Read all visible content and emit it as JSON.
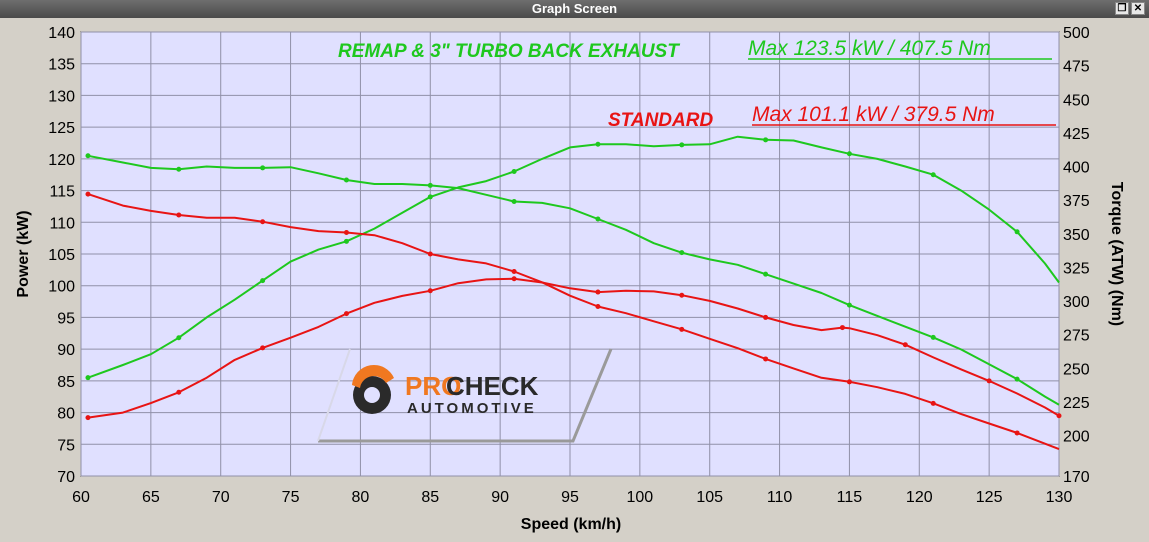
{
  "window": {
    "title": "Graph Screen",
    "restore_icon": "restore-icon",
    "close_icon": "close-icon"
  },
  "colors": {
    "remap": "#1ec81e",
    "standard": "#e81414",
    "plot_bg": "#e0e0ff",
    "grid": "#9090a8"
  },
  "chart_data": {
    "type": "line",
    "xlabel": "Speed (km/h)",
    "ylabel_left": "Power (kW)",
    "ylabel_right": "Torque (ATW) (Nm)",
    "xlim": [
      60,
      130
    ],
    "ylim_left": [
      70,
      140
    ],
    "ylim_right": [
      170,
      500
    ],
    "x_ticks": [
      60,
      65,
      70,
      75,
      80,
      85,
      90,
      95,
      100,
      105,
      110,
      115,
      120,
      125,
      130
    ],
    "y_ticks_left": [
      70,
      75,
      80,
      85,
      90,
      95,
      100,
      105,
      110,
      115,
      120,
      125,
      130,
      135,
      140
    ],
    "y_ticks_right": [
      170,
      200,
      225,
      250,
      275,
      300,
      325,
      350,
      375,
      400,
      425,
      450,
      475,
      500
    ],
    "grid": true,
    "annotations": [
      {
        "text": "REMAP & 3\" TURBO BACK EXHAUST",
        "color": "#1ec81e",
        "style": "bold-italic"
      },
      {
        "text": "Max 123.5 kW  / 407.5 Nm",
        "color": "#1ec81e",
        "style": "italic-underline"
      },
      {
        "text": "STANDARD",
        "color": "#e81414",
        "style": "bold-italic"
      },
      {
        "text": "Max 101.1 kW  / 379.5 Nm",
        "color": "#e81414",
        "style": "italic-underline"
      }
    ],
    "series": [
      {
        "group": "remap",
        "axis": "left",
        "color": "#1ec81e",
        "x": [
          60.5,
          63,
          65,
          67,
          69,
          71,
          73,
          75,
          77,
          79,
          81,
          83,
          85,
          87,
          89,
          91,
          93,
          95,
          97,
          99,
          101,
          103,
          105,
          107,
          109,
          111,
          113,
          115,
          117,
          119,
          121,
          123,
          125,
          127,
          129,
          130
        ],
        "y": [
          85.5,
          87.5,
          89.2,
          91.8,
          95,
          97.8,
          100.8,
          103.8,
          105.7,
          107,
          109,
          111.5,
          114,
          115.5,
          116.5,
          118,
          120,
          121.8,
          122.3,
          122.3,
          122,
          122.2,
          122.3,
          123.5,
          123,
          122.9,
          121.8,
          120.8,
          120,
          118.8,
          117.5,
          115,
          112,
          108.5,
          103.5,
          100.5
        ]
      },
      {
        "group": "remap",
        "axis": "right",
        "color": "#1ec81e",
        "x": [
          60.5,
          63,
          65,
          67,
          69,
          71,
          73,
          75,
          77,
          79,
          81,
          83,
          85,
          87,
          89,
          91,
          93,
          95,
          97,
          99,
          101,
          103,
          105,
          107,
          109,
          111,
          113,
          115,
          117,
          119,
          121,
          123,
          125,
          127,
          129,
          130
        ],
        "y": [
          408,
          403,
          399,
          398,
          400,
          399,
          399,
          399.5,
          395,
          390,
          387,
          387,
          386,
          384,
          379,
          374,
          373,
          369,
          361,
          353,
          343,
          336,
          331,
          327,
          320,
          313,
          306,
          297,
          289,
          281,
          273,
          264,
          253,
          242,
          229,
          223
        ]
      },
      {
        "group": "standard",
        "axis": "left",
        "color": "#e81414",
        "x": [
          60.5,
          63,
          65,
          67,
          69,
          71,
          73,
          75,
          77,
          79,
          81,
          83,
          85,
          87,
          89,
          91,
          93,
          95,
          97,
          99,
          101,
          103,
          105,
          107,
          109,
          111,
          113,
          114.5,
          115,
          117,
          119,
          121,
          123,
          125,
          127,
          129,
          130
        ],
        "y": [
          79.2,
          80,
          81.5,
          83.2,
          85.5,
          88.3,
          90.2,
          91.8,
          93.5,
          95.6,
          97.3,
          98.4,
          99.2,
          100.4,
          101,
          101.1,
          100.5,
          99.6,
          99,
          99.2,
          99.1,
          98.5,
          97.6,
          96.4,
          95,
          93.8,
          93,
          93.4,
          93.3,
          92.2,
          90.7,
          88.7,
          86.8,
          85,
          83,
          80.8,
          79.5
        ]
      },
      {
        "group": "standard",
        "axis": "right",
        "color": "#e81414",
        "x": [
          60.5,
          63,
          65,
          67,
          69,
          71,
          73,
          75,
          77,
          79,
          81,
          83,
          85,
          87,
          89,
          91,
          93,
          95,
          97,
          99,
          101,
          103,
          105,
          107,
          109,
          111,
          113,
          115,
          117,
          119,
          121,
          123,
          125,
          127,
          129,
          130
        ],
        "y": [
          379.5,
          371,
          367,
          364,
          362,
          362,
          359,
          355,
          352,
          351,
          349,
          343,
          335,
          331,
          328,
          322,
          314,
          304,
          296,
          291,
          285,
          279,
          272,
          265,
          257,
          250,
          243,
          240,
          236,
          231,
          224,
          216,
          209,
          202,
          194,
          190
        ]
      }
    ]
  }
}
